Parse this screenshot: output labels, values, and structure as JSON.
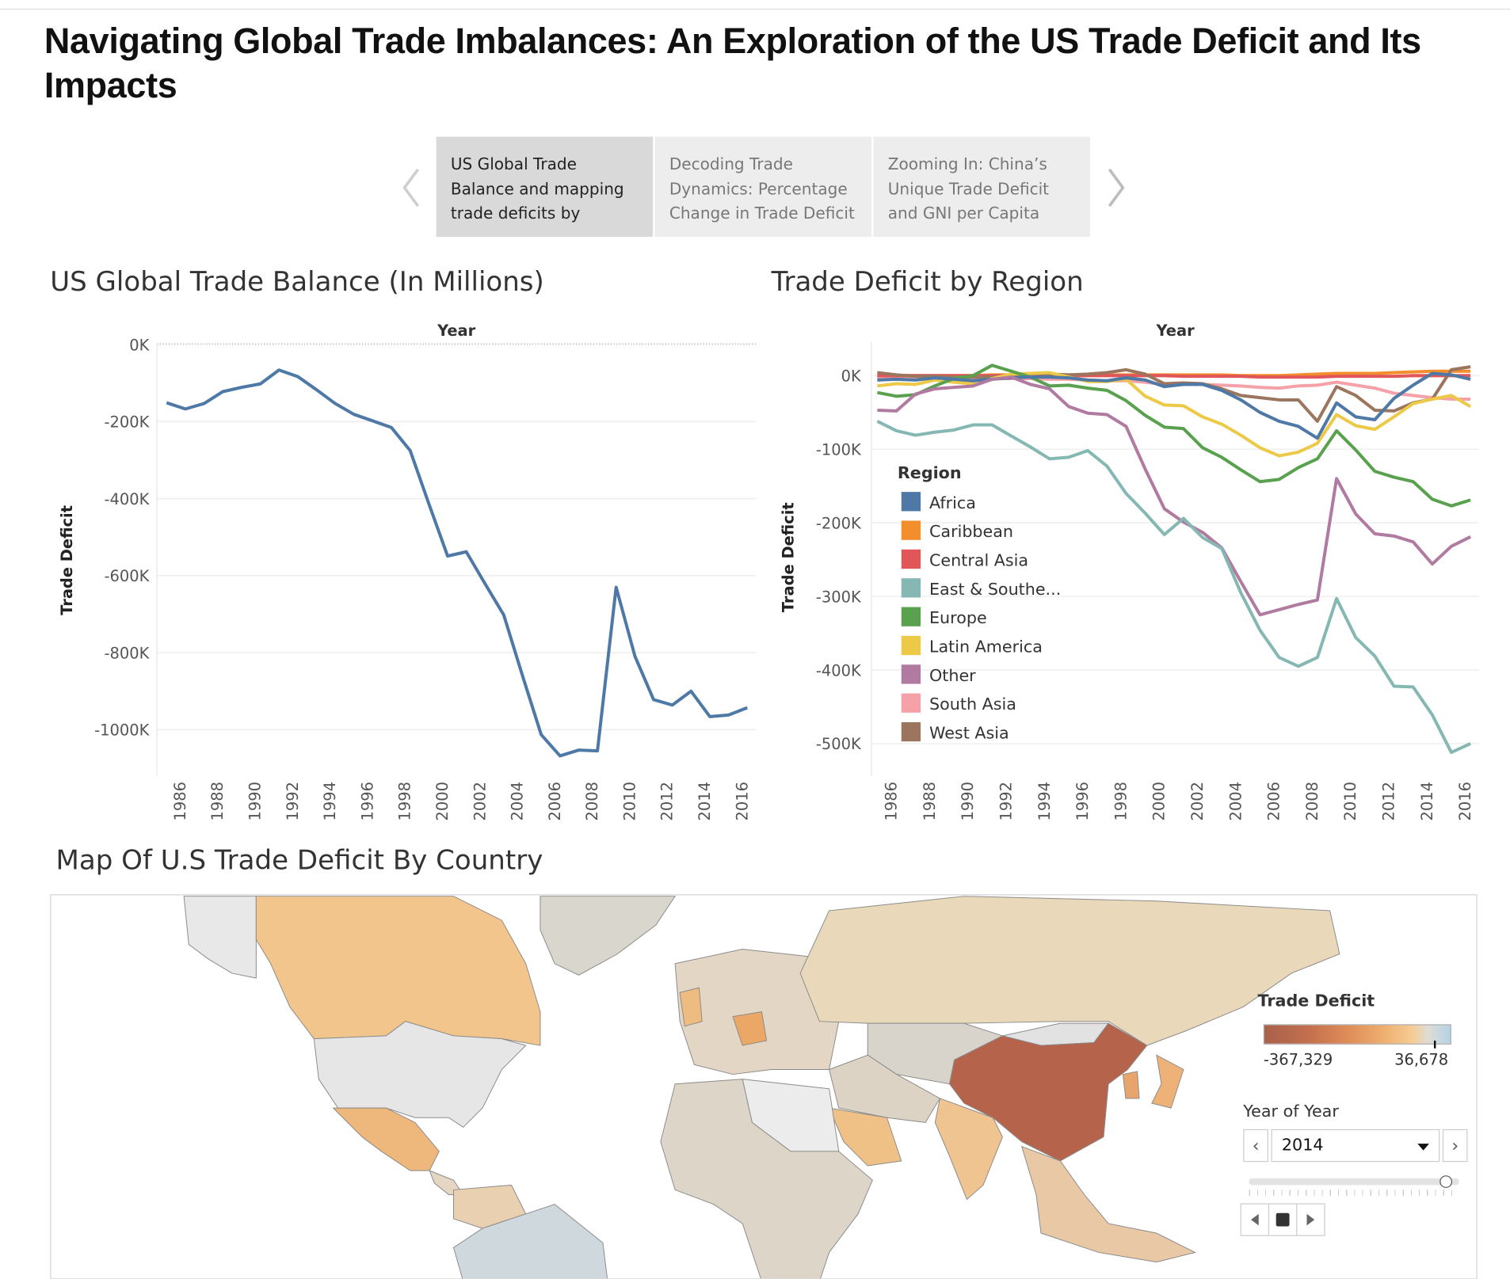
{
  "header": {
    "title": "Navigating Global Trade Imbalances: An Exploration of the US Trade Deficit and Its Impacts"
  },
  "story_nav": {
    "prev_icon": "chevron-left-icon",
    "next_icon": "chevron-right-icon",
    "points": [
      {
        "label": "US Global Trade Balance and mapping trade deficits by",
        "active": true
      },
      {
        "label": "Decoding Trade Dynamics: Percentage Change in Trade Deficit",
        "active": false
      },
      {
        "label": "Zooming In: China’s Unique Trade Deficit and GNI per Capita",
        "active": false
      }
    ]
  },
  "chart_data": [
    {
      "type": "line",
      "title": "US Global Trade Balance (In Millions)",
      "xlabel": "Year",
      "ylabel": "Trade Deficit",
      "x": [
        1985,
        1986,
        1987,
        1988,
        1989,
        1990,
        1991,
        1992,
        1993,
        1994,
        1995,
        1996,
        1997,
        1998,
        1999,
        2000,
        2001,
        2002,
        2003,
        2004,
        2005,
        2006,
        2007,
        2008,
        2009,
        2010,
        2011,
        2012,
        2013,
        2014,
        2015,
        2016
      ],
      "x_ticks": [
        "1986",
        "1988",
        "1990",
        "1992",
        "1994",
        "1996",
        "1998",
        "2000",
        "2002",
        "2004",
        "2006",
        "2008",
        "2010",
        "2012",
        "2014",
        "2016"
      ],
      "y_ticks": [
        "0K",
        "-200K",
        "-400K",
        "-600K",
        "-800K",
        "-1000K"
      ],
      "y_tick_values": [
        0,
        -200000,
        -400000,
        -600000,
        -800000,
        -1000000
      ],
      "ylim": [
        -1120000,
        0
      ],
      "grid": true,
      "color": "#4e79a7",
      "values": [
        -151000,
        -167000,
        -153000,
        -122000,
        -111000,
        -102000,
        -66000,
        -83000,
        -117000,
        -153000,
        -181000,
        -198000,
        -215000,
        -275000,
        -413000,
        -549000,
        -538000,
        -621000,
        -702000,
        -860000,
        -1013000,
        -1068000,
        -1053000,
        -1055000,
        -630000,
        -809000,
        -922000,
        -936000,
        -900000,
        -966000,
        -962000,
        -943000
      ]
    },
    {
      "type": "line",
      "title": "Trade Deficit by Region",
      "xlabel": "Year",
      "ylabel": "Trade Deficit",
      "legend_title": "Region",
      "legend_position": "left-inside",
      "x": [
        1985,
        1986,
        1987,
        1988,
        1989,
        1990,
        1991,
        1992,
        1993,
        1994,
        1995,
        1996,
        1997,
        1998,
        1999,
        2000,
        2001,
        2002,
        2003,
        2004,
        2005,
        2006,
        2007,
        2008,
        2009,
        2010,
        2011,
        2012,
        2013,
        2014,
        2015,
        2016
      ],
      "x_ticks": [
        "1986",
        "1988",
        "1990",
        "1992",
        "1994",
        "1996",
        "1998",
        "2000",
        "2002",
        "2004",
        "2006",
        "2008",
        "2010",
        "2012",
        "2014",
        "2016"
      ],
      "y_ticks": [
        "0K",
        "-100K",
        "-200K",
        "-300K",
        "-400K",
        "-500K"
      ],
      "y_tick_values": [
        0,
        -100000,
        -200000,
        -300000,
        -400000,
        -500000
      ],
      "ylim": [
        -540000,
        46000
      ],
      "grid": true,
      "series": [
        {
          "name": "Africa",
          "color": "#4e79a7",
          "values": [
            -6000,
            -5000,
            -6000,
            -3000,
            -5000,
            -7000,
            -5000,
            -3000,
            -2000,
            -2000,
            -3000,
            -6000,
            -7000,
            -3000,
            -6000,
            -15000,
            -12000,
            -12000,
            -20000,
            -33000,
            -50000,
            -62000,
            -69000,
            -85000,
            -37000,
            -56000,
            -60000,
            -31000,
            -13000,
            3000,
            1000,
            -5000
          ]
        },
        {
          "name": "Caribbean",
          "color": "#f28e2b",
          "values": [
            0,
            0,
            0,
            0,
            0,
            0,
            1000,
            1000,
            1000,
            1000,
            1000,
            1000,
            1000,
            1000,
            1000,
            1000,
            1000,
            1000,
            1000,
            0,
            0,
            0,
            1000,
            2000,
            3000,
            3000,
            3000,
            4000,
            5000,
            6000,
            6000,
            6000
          ]
        },
        {
          "name": "Central Asia",
          "color": "#e15759",
          "values": [
            0,
            0,
            0,
            0,
            0,
            0,
            0,
            0,
            0,
            0,
            0,
            0,
            0,
            0,
            0,
            0,
            -1000,
            -1000,
            -1000,
            -1000,
            -2000,
            -2000,
            -2000,
            -2000,
            -1000,
            -1000,
            -1000,
            -1000,
            0,
            0,
            0,
            0
          ]
        },
        {
          "name": "East & Southe...",
          "color": "#86b8b3",
          "values": [
            -62000,
            -75000,
            -81000,
            -77000,
            -74000,
            -67000,
            -67000,
            -82000,
            -97000,
            -113000,
            -111000,
            -102000,
            -123000,
            -160000,
            -187000,
            -216000,
            -194000,
            -220000,
            -235000,
            -295000,
            -346000,
            -383000,
            -395000,
            -383000,
            -303000,
            -356000,
            -381000,
            -422000,
            -423000,
            -461000,
            -512000,
            -500000
          ]
        },
        {
          "name": "Europe",
          "color": "#59a14f",
          "values": [
            -23000,
            -28000,
            -26000,
            -14000,
            -4000,
            0,
            14000,
            6000,
            -2000,
            -14000,
            -13000,
            -17000,
            -20000,
            -34000,
            -54000,
            -70000,
            -72000,
            -98000,
            -111000,
            -128000,
            -144000,
            -141000,
            -125000,
            -113000,
            -75000,
            -101000,
            -130000,
            -138000,
            -144000,
            -168000,
            -177000,
            -169000
          ]
        },
        {
          "name": "Latin America",
          "color": "#edc948",
          "values": [
            -14000,
            -11000,
            -12000,
            -6000,
            -9000,
            -11000,
            -4000,
            2000,
            3000,
            4000,
            -2000,
            -8000,
            -8000,
            -5000,
            -28000,
            -40000,
            -41000,
            -56000,
            -66000,
            -81000,
            -98000,
            -109000,
            -104000,
            -92000,
            -53000,
            -68000,
            -73000,
            -56000,
            -38000,
            -32000,
            -27000,
            -42000
          ]
        },
        {
          "name": "Other",
          "color": "#b07aa1",
          "values": [
            -47000,
            -48000,
            -25000,
            -18000,
            -16000,
            -14000,
            -5000,
            -2000,
            -12000,
            -18000,
            -42000,
            -51000,
            -53000,
            -69000,
            -127000,
            -181000,
            -199000,
            -213000,
            -234000,
            -280000,
            -325000,
            -318000,
            -311000,
            -305000,
            -140000,
            -188000,
            -215000,
            -218000,
            -226000,
            -256000,
            -232000,
            -219000
          ]
        },
        {
          "name": "South Asia",
          "color": "#f4a1a8",
          "values": [
            -2000,
            -2000,
            -3000,
            -4000,
            -4000,
            -4000,
            -4000,
            -4000,
            -4000,
            -5000,
            -5000,
            -6000,
            -7000,
            -7000,
            -9000,
            -12000,
            -12000,
            -12000,
            -13000,
            -14000,
            -16000,
            -17000,
            -14000,
            -13000,
            -9000,
            -13000,
            -17000,
            -24000,
            -27000,
            -30000,
            -32000,
            -32000
          ]
        },
        {
          "name": "West Asia",
          "color": "#9c755f",
          "values": [
            4000,
            1000,
            -1000,
            -1000,
            -2000,
            -2000,
            -2000,
            0,
            1000,
            2000,
            1000,
            2000,
            4000,
            8000,
            2000,
            -11000,
            -10000,
            -11000,
            -18000,
            -27000,
            -30000,
            -33000,
            -33000,
            -62000,
            -15000,
            -27000,
            -47000,
            -48000,
            -37000,
            -32000,
            8000,
            12000
          ]
        }
      ]
    }
  ],
  "map": {
    "title": "Map Of U.S Trade Deficit By Country",
    "legend_title": "Trade Deficit",
    "legend_min": "-367,329",
    "legend_max": "36,678",
    "colors": {
      "alaska": "#e8e8e8",
      "canada": "#f1c58c",
      "usa": "#e6e6e6",
      "mexico": "#eeb77b",
      "central_america": "#e4d6c2",
      "south_america": "#cfd8dc",
      "colombia": "#e8d0b0",
      "greenland": "#d9d6cd",
      "europe": "#e3d6c4",
      "germany": "#eba766",
      "uk": "#eebb80",
      "russia": "#e9d8ba",
      "central_asia": "#d8d4cc",
      "china": "#b5644b",
      "india": "#f0c490",
      "africa": "#dcd5c8",
      "north_africa": "#ececec",
      "saudi": "#efc187",
      "middle_east": "#ddd3c4",
      "japan": "#eeb278",
      "korea": "#e7a46c",
      "se_asia": "#e9c9a5",
      "mongolia": "#e2e2e2"
    },
    "filter": {
      "label": "Year of Year",
      "selected": "2014",
      "slider_fraction": 0.93
    }
  }
}
